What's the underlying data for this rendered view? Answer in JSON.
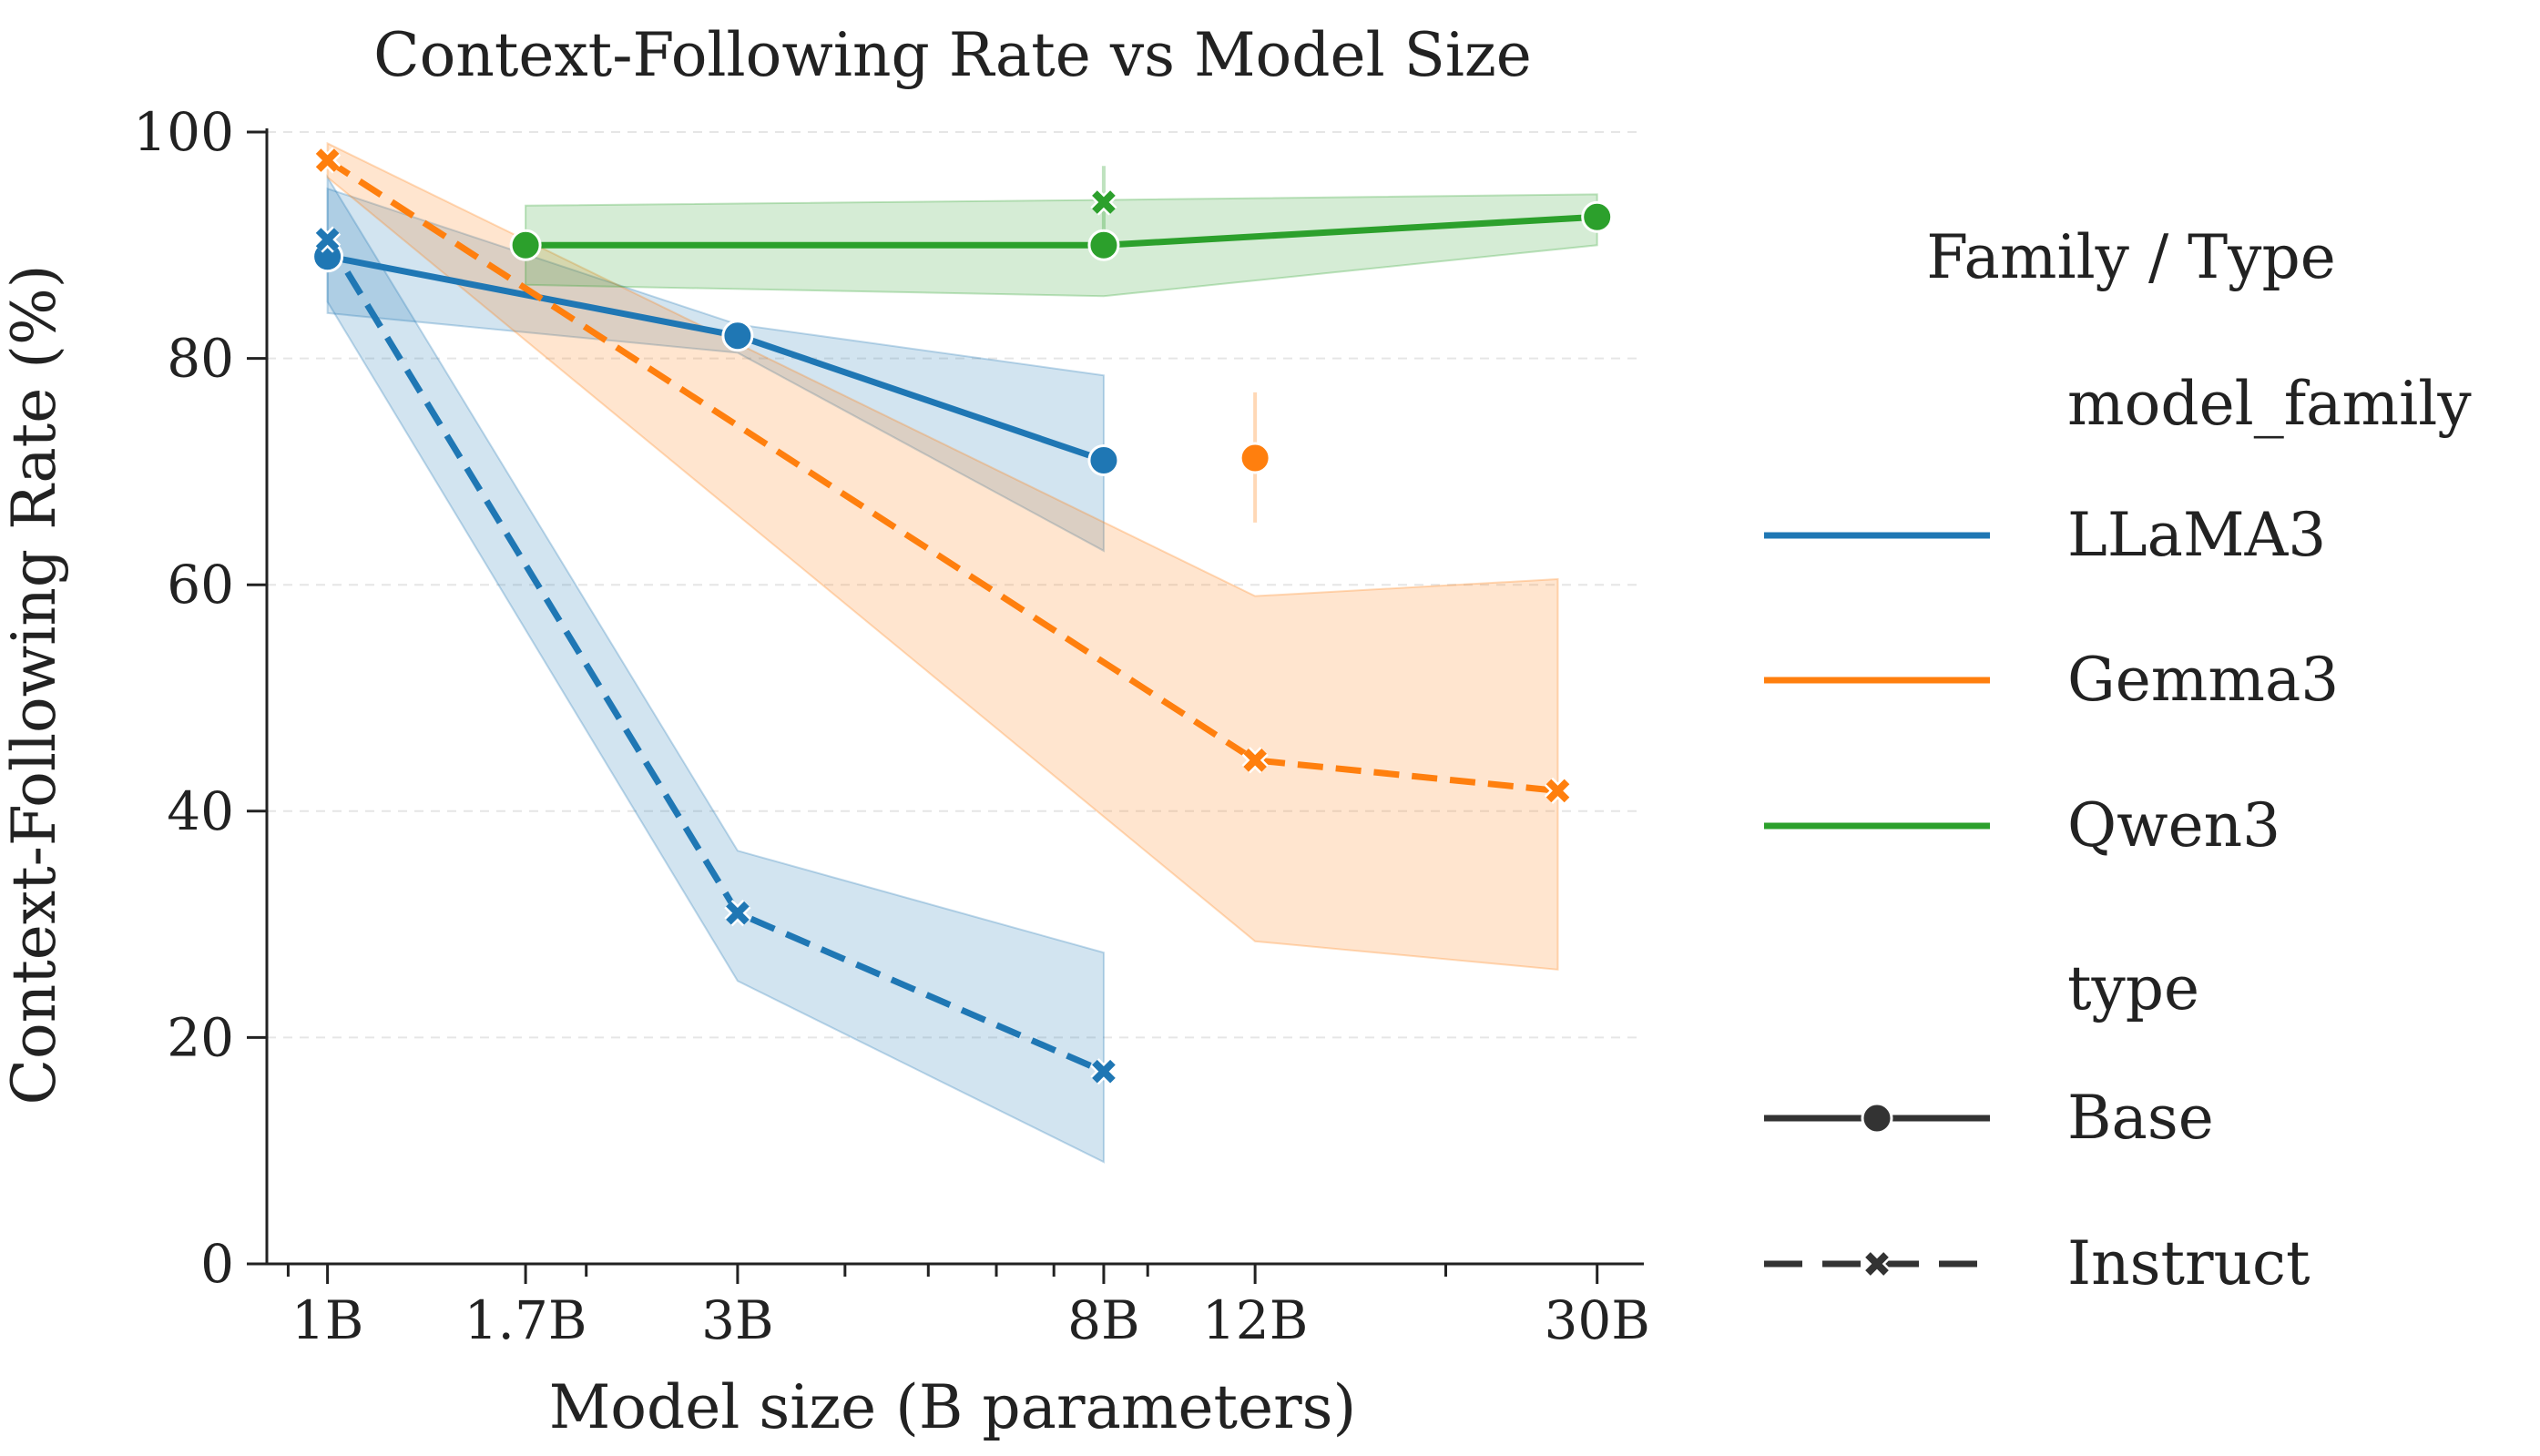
{
  "chart_data": {
    "type": "line",
    "title": "Context-Following Rate vs Model Size",
    "xlabel": "Model size (B parameters)",
    "ylabel": "Context-Following Rate (%)",
    "x_scale": "log",
    "xlim": [
      0.85,
      34
    ],
    "ylim": [
      0,
      100
    ],
    "x_ticks": [
      {
        "value": 1,
        "label": "1B"
      },
      {
        "value": 1.7,
        "label": "1.7B"
      },
      {
        "value": 3,
        "label": "3B"
      },
      {
        "value": 8,
        "label": "8B"
      },
      {
        "value": 12,
        "label": "12B"
      },
      {
        "value": 30,
        "label": "30B"
      }
    ],
    "x_minor_ticks": [
      0.9,
      2,
      4,
      5,
      6,
      7,
      9,
      20
    ],
    "y_ticks": [
      0,
      20,
      40,
      60,
      80,
      100
    ],
    "grid": "horizontal dashed",
    "legend": {
      "title": "Family / Type",
      "position": "right",
      "family_header": "model_family",
      "type_header": "type",
      "families": [
        {
          "label": "LLaMA3",
          "color": "#1f77b4"
        },
        {
          "label": "Gemma3",
          "color": "#ff7f0e"
        },
        {
          "label": "Qwen3",
          "color": "#2ca02c"
        }
      ],
      "types": [
        {
          "label": "Base",
          "marker": "circle",
          "dash": "solid"
        },
        {
          "label": "Instruct",
          "marker": "x",
          "dash": "dashed"
        }
      ]
    },
    "series": [
      {
        "family": "LLaMA3",
        "type": "Base",
        "color": "#1f77b4",
        "points": [
          {
            "x": 1,
            "y": 89,
            "lo": 84,
            "hi": 95
          },
          {
            "x": 3,
            "y": 82,
            "lo": 80.5,
            "hi": 83
          },
          {
            "x": 8,
            "y": 71,
            "lo": 63,
            "hi": 78.5
          }
        ]
      },
      {
        "family": "LLaMA3",
        "type": "Instruct",
        "color": "#1f77b4",
        "points": [
          {
            "x": 1,
            "y": 90.5,
            "lo": 85,
            "hi": 96
          },
          {
            "x": 3,
            "y": 31,
            "lo": 25,
            "hi": 36.5
          },
          {
            "x": 8,
            "y": 17,
            "lo": 9,
            "hi": 27.5
          }
        ]
      },
      {
        "family": "Gemma3",
        "type": "Base",
        "color": "#ff7f0e",
        "points": [
          {
            "x": 12,
            "y": 71.2,
            "lo": 65.5,
            "hi": 77
          }
        ]
      },
      {
        "family": "Gemma3",
        "type": "Instruct",
        "color": "#ff7f0e",
        "points": [
          {
            "x": 1,
            "y": 97.5,
            "lo": 96,
            "hi": 99
          },
          {
            "x": 12,
            "y": 44.5,
            "lo": 28.5,
            "hi": 59
          },
          {
            "x": 27,
            "y": 41.8,
            "lo": 26,
            "hi": 60.5
          }
        ]
      },
      {
        "family": "Qwen3",
        "type": "Base",
        "color": "#2ca02c",
        "points": [
          {
            "x": 1.7,
            "y": 90,
            "lo": 86.5,
            "hi": 93.5
          },
          {
            "x": 8,
            "y": 90,
            "lo": 85.5,
            "hi": 94
          },
          {
            "x": 30,
            "y": 92.5,
            "lo": 90,
            "hi": 94.5
          }
        ]
      },
      {
        "family": "Qwen3",
        "type": "Instruct",
        "color": "#2ca02c",
        "points": [
          {
            "x": 8,
            "y": 93.8,
            "lo": 90.5,
            "hi": 97
          }
        ]
      }
    ]
  }
}
